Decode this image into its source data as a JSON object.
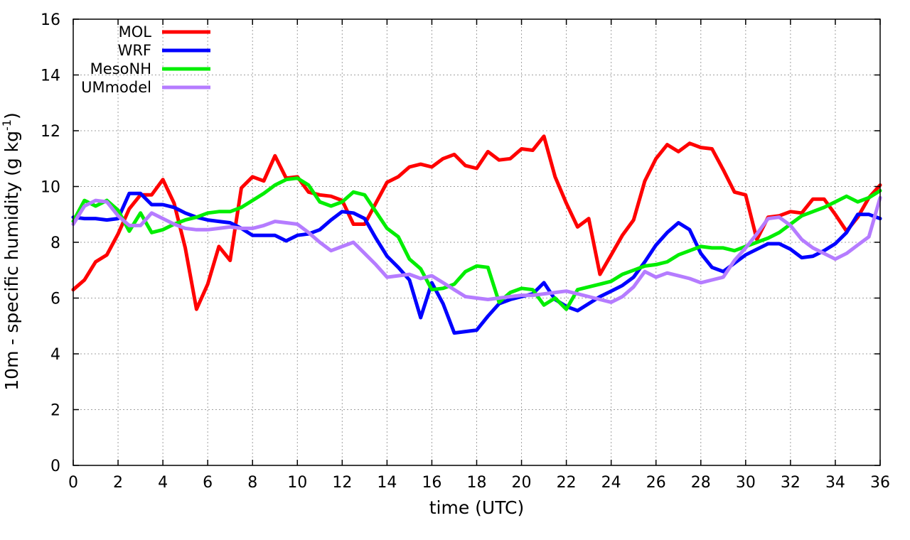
{
  "chart_data": {
    "type": "line",
    "xlabel": "time (UTC)",
    "ylabel": {
      "main": "10m - specific humidity (g kg",
      "sup": "-1",
      "tail": ")"
    },
    "xlim": [
      0,
      36
    ],
    "ylim": [
      0,
      16
    ],
    "xticks": [
      0,
      2,
      4,
      6,
      8,
      10,
      12,
      14,
      16,
      18,
      20,
      22,
      24,
      26,
      28,
      30,
      32,
      34,
      36
    ],
    "yticks": [
      0,
      2,
      4,
      6,
      8,
      10,
      12,
      14,
      16
    ],
    "grid": true,
    "legend_position": "top-left",
    "series": [
      {
        "name": "MOL",
        "color": "#ff0000",
        "points": [
          [
            0,
            6.3
          ],
          [
            0.5,
            6.65
          ],
          [
            1,
            7.3
          ],
          [
            1.5,
            7.55
          ],
          [
            2,
            8.3
          ],
          [
            2.5,
            9.2
          ],
          [
            3,
            9.7
          ],
          [
            3.5,
            9.7
          ],
          [
            4,
            10.25
          ],
          [
            4.5,
            9.4
          ],
          [
            5,
            7.8
          ],
          [
            5.5,
            5.6
          ],
          [
            6,
            6.5
          ],
          [
            6.5,
            7.85
          ],
          [
            7,
            7.35
          ],
          [
            7.5,
            9.95
          ],
          [
            8,
            10.35
          ],
          [
            8.5,
            10.2
          ],
          [
            9,
            11.1
          ],
          [
            9.5,
            10.3
          ],
          [
            10,
            10.35
          ],
          [
            10.5,
            9.8
          ],
          [
            11,
            9.7
          ],
          [
            11.5,
            9.65
          ],
          [
            12,
            9.5
          ],
          [
            12.5,
            8.65
          ],
          [
            13,
            8.65
          ],
          [
            13.5,
            9.4
          ],
          [
            14,
            10.15
          ],
          [
            14.5,
            10.35
          ],
          [
            15,
            10.7
          ],
          [
            15.5,
            10.8
          ],
          [
            16,
            10.7
          ],
          [
            16.5,
            11.0
          ],
          [
            17,
            11.15
          ],
          [
            17.5,
            10.75
          ],
          [
            18,
            10.65
          ],
          [
            18.5,
            11.25
          ],
          [
            19,
            10.95
          ],
          [
            19.5,
            11.0
          ],
          [
            20,
            11.35
          ],
          [
            20.5,
            11.3
          ],
          [
            21,
            11.8
          ],
          [
            21.5,
            10.35
          ],
          [
            22,
            9.4
          ],
          [
            22.5,
            8.55
          ],
          [
            23,
            8.85
          ],
          [
            23.5,
            6.85
          ],
          [
            24,
            7.55
          ],
          [
            24.5,
            8.25
          ],
          [
            25,
            8.8
          ],
          [
            25.5,
            10.2
          ],
          [
            26,
            11.0
          ],
          [
            26.5,
            11.5
          ],
          [
            27,
            11.25
          ],
          [
            27.5,
            11.55
          ],
          [
            28,
            11.4
          ],
          [
            28.5,
            11.35
          ],
          [
            29,
            10.6
          ],
          [
            29.5,
            9.8
          ],
          [
            30,
            9.7
          ],
          [
            30.5,
            8.1
          ],
          [
            31,
            8.9
          ],
          [
            31.5,
            8.95
          ],
          [
            32,
            9.1
          ],
          [
            32.5,
            9.05
          ],
          [
            33,
            9.55
          ],
          [
            33.5,
            9.55
          ],
          [
            34,
            9.0
          ],
          [
            34.5,
            8.4
          ],
          [
            35,
            8.9
          ],
          [
            35.5,
            9.6
          ],
          [
            36,
            10.05
          ]
        ]
      },
      {
        "name": "WRF",
        "color": "#0000ff",
        "points": [
          [
            0,
            8.9
          ],
          [
            0.5,
            8.85
          ],
          [
            1,
            8.85
          ],
          [
            1.5,
            8.8
          ],
          [
            2,
            8.85
          ],
          [
            2.5,
            9.75
          ],
          [
            3,
            9.75
          ],
          [
            3.5,
            9.35
          ],
          [
            4,
            9.35
          ],
          [
            4.5,
            9.25
          ],
          [
            5,
            9.05
          ],
          [
            5.5,
            8.9
          ],
          [
            6,
            8.8
          ],
          [
            6.5,
            8.75
          ],
          [
            7,
            8.7
          ],
          [
            7.5,
            8.5
          ],
          [
            8,
            8.25
          ],
          [
            8.5,
            8.25
          ],
          [
            9,
            8.25
          ],
          [
            9.5,
            8.05
          ],
          [
            10,
            8.25
          ],
          [
            10.5,
            8.3
          ],
          [
            11,
            8.45
          ],
          [
            11.5,
            8.8
          ],
          [
            12,
            9.1
          ],
          [
            12.5,
            9.05
          ],
          [
            13,
            8.85
          ],
          [
            13.5,
            8.15
          ],
          [
            14,
            7.5
          ],
          [
            14.5,
            7.1
          ],
          [
            15,
            6.65
          ],
          [
            15.5,
            5.3
          ],
          [
            16,
            6.55
          ],
          [
            16.5,
            5.8
          ],
          [
            17,
            4.75
          ],
          [
            17.5,
            4.8
          ],
          [
            18,
            4.85
          ],
          [
            18.5,
            5.35
          ],
          [
            19,
            5.8
          ],
          [
            19.5,
            5.95
          ],
          [
            20,
            6.05
          ],
          [
            20.5,
            6.15
          ],
          [
            21,
            6.55
          ],
          [
            21.5,
            5.95
          ],
          [
            22,
            5.7
          ],
          [
            22.5,
            5.55
          ],
          [
            23,
            5.8
          ],
          [
            23.5,
            6.05
          ],
          [
            24,
            6.25
          ],
          [
            24.5,
            6.45
          ],
          [
            25,
            6.75
          ],
          [
            25.5,
            7.3
          ],
          [
            26,
            7.9
          ],
          [
            26.5,
            8.35
          ],
          [
            27,
            8.7
          ],
          [
            27.5,
            8.45
          ],
          [
            28,
            7.6
          ],
          [
            28.5,
            7.1
          ],
          [
            29,
            6.95
          ],
          [
            29.5,
            7.25
          ],
          [
            30,
            7.55
          ],
          [
            30.5,
            7.75
          ],
          [
            31,
            7.95
          ],
          [
            31.5,
            7.95
          ],
          [
            32,
            7.75
          ],
          [
            32.5,
            7.45
          ],
          [
            33,
            7.5
          ],
          [
            33.5,
            7.7
          ],
          [
            34,
            7.95
          ],
          [
            34.5,
            8.35
          ],
          [
            35,
            9.0
          ],
          [
            35.5,
            9.0
          ],
          [
            36,
            8.85
          ]
        ]
      },
      {
        "name": "MesoNH",
        "color": "#00ee00",
        "points": [
          [
            0,
            8.75
          ],
          [
            0.5,
            9.5
          ],
          [
            1,
            9.3
          ],
          [
            1.5,
            9.5
          ],
          [
            2,
            9.15
          ],
          [
            2.5,
            8.4
          ],
          [
            3,
            9.05
          ],
          [
            3.5,
            8.35
          ],
          [
            4,
            8.45
          ],
          [
            4.5,
            8.65
          ],
          [
            5,
            8.8
          ],
          [
            5.5,
            8.9
          ],
          [
            6,
            9.05
          ],
          [
            6.5,
            9.1
          ],
          [
            7,
            9.1
          ],
          [
            7.5,
            9.25
          ],
          [
            8,
            9.5
          ],
          [
            8.5,
            9.75
          ],
          [
            9,
            10.05
          ],
          [
            9.5,
            10.25
          ],
          [
            10,
            10.3
          ],
          [
            10.5,
            10.05
          ],
          [
            11,
            9.45
          ],
          [
            11.5,
            9.3
          ],
          [
            12,
            9.45
          ],
          [
            12.5,
            9.8
          ],
          [
            13,
            9.7
          ],
          [
            13.5,
            9.1
          ],
          [
            14,
            8.5
          ],
          [
            14.5,
            8.2
          ],
          [
            15,
            7.4
          ],
          [
            15.5,
            7.05
          ],
          [
            16,
            6.3
          ],
          [
            16.5,
            6.35
          ],
          [
            17,
            6.5
          ],
          [
            17.5,
            6.95
          ],
          [
            18,
            7.15
          ],
          [
            18.5,
            7.1
          ],
          [
            19,
            5.85
          ],
          [
            19.5,
            6.2
          ],
          [
            20,
            6.35
          ],
          [
            20.5,
            6.3
          ],
          [
            21,
            5.75
          ],
          [
            21.5,
            6.0
          ],
          [
            22,
            5.6
          ],
          [
            22.5,
            6.3
          ],
          [
            23,
            6.4
          ],
          [
            23.5,
            6.5
          ],
          [
            24,
            6.6
          ],
          [
            24.5,
            6.85
          ],
          [
            25,
            7.0
          ],
          [
            25.5,
            7.15
          ],
          [
            26,
            7.2
          ],
          [
            26.5,
            7.3
          ],
          [
            27,
            7.55
          ],
          [
            27.5,
            7.7
          ],
          [
            28,
            7.85
          ],
          [
            28.5,
            7.8
          ],
          [
            29,
            7.8
          ],
          [
            29.5,
            7.7
          ],
          [
            30,
            7.85
          ],
          [
            30.5,
            8.0
          ],
          [
            31,
            8.15
          ],
          [
            31.5,
            8.35
          ],
          [
            32,
            8.65
          ],
          [
            32.5,
            8.95
          ],
          [
            33,
            9.1
          ],
          [
            33.5,
            9.25
          ],
          [
            34,
            9.45
          ],
          [
            34.5,
            9.65
          ],
          [
            35,
            9.45
          ],
          [
            35.5,
            9.6
          ],
          [
            36,
            9.85
          ]
        ]
      },
      {
        "name": "UMmodel",
        "color": "#b57cff",
        "points": [
          [
            0,
            8.65
          ],
          [
            0.5,
            9.3
          ],
          [
            1,
            9.5
          ],
          [
            1.5,
            9.45
          ],
          [
            2,
            8.95
          ],
          [
            2.5,
            8.6
          ],
          [
            3,
            8.6
          ],
          [
            3.5,
            9.05
          ],
          [
            4,
            8.85
          ],
          [
            4.5,
            8.65
          ],
          [
            5,
            8.5
          ],
          [
            5.5,
            8.45
          ],
          [
            6,
            8.45
          ],
          [
            6.5,
            8.5
          ],
          [
            7,
            8.55
          ],
          [
            7.5,
            8.5
          ],
          [
            8,
            8.5
          ],
          [
            8.5,
            8.6
          ],
          [
            9,
            8.75
          ],
          [
            9.5,
            8.7
          ],
          [
            10,
            8.65
          ],
          [
            10.5,
            8.35
          ],
          [
            11,
            8.0
          ],
          [
            11.5,
            7.7
          ],
          [
            12,
            7.85
          ],
          [
            12.5,
            8.0
          ],
          [
            13,
            7.6
          ],
          [
            13.5,
            7.2
          ],
          [
            14,
            6.75
          ],
          [
            14.5,
            6.8
          ],
          [
            15,
            6.85
          ],
          [
            15.5,
            6.7
          ],
          [
            16,
            6.8
          ],
          [
            16.5,
            6.55
          ],
          [
            17,
            6.3
          ],
          [
            17.5,
            6.05
          ],
          [
            18,
            6.0
          ],
          [
            18.5,
            5.95
          ],
          [
            19,
            6.0
          ],
          [
            19.5,
            6.05
          ],
          [
            20,
            6.1
          ],
          [
            20.5,
            6.1
          ],
          [
            21,
            6.15
          ],
          [
            21.5,
            6.2
          ],
          [
            22,
            6.25
          ],
          [
            22.5,
            6.15
          ],
          [
            23,
            6.05
          ],
          [
            23.5,
            5.95
          ],
          [
            24,
            5.85
          ],
          [
            24.5,
            6.05
          ],
          [
            25,
            6.4
          ],
          [
            25.5,
            6.95
          ],
          [
            26,
            6.75
          ],
          [
            26.5,
            6.9
          ],
          [
            27,
            6.8
          ],
          [
            27.5,
            6.7
          ],
          [
            28,
            6.55
          ],
          [
            28.5,
            6.65
          ],
          [
            29,
            6.75
          ],
          [
            29.5,
            7.35
          ],
          [
            30,
            7.8
          ],
          [
            30.5,
            8.3
          ],
          [
            31,
            8.85
          ],
          [
            31.5,
            8.9
          ],
          [
            32,
            8.6
          ],
          [
            32.5,
            8.1
          ],
          [
            33,
            7.8
          ],
          [
            33.5,
            7.6
          ],
          [
            34,
            7.4
          ],
          [
            34.5,
            7.6
          ],
          [
            35,
            7.9
          ],
          [
            35.5,
            8.2
          ],
          [
            36,
            9.6
          ]
        ]
      }
    ]
  }
}
